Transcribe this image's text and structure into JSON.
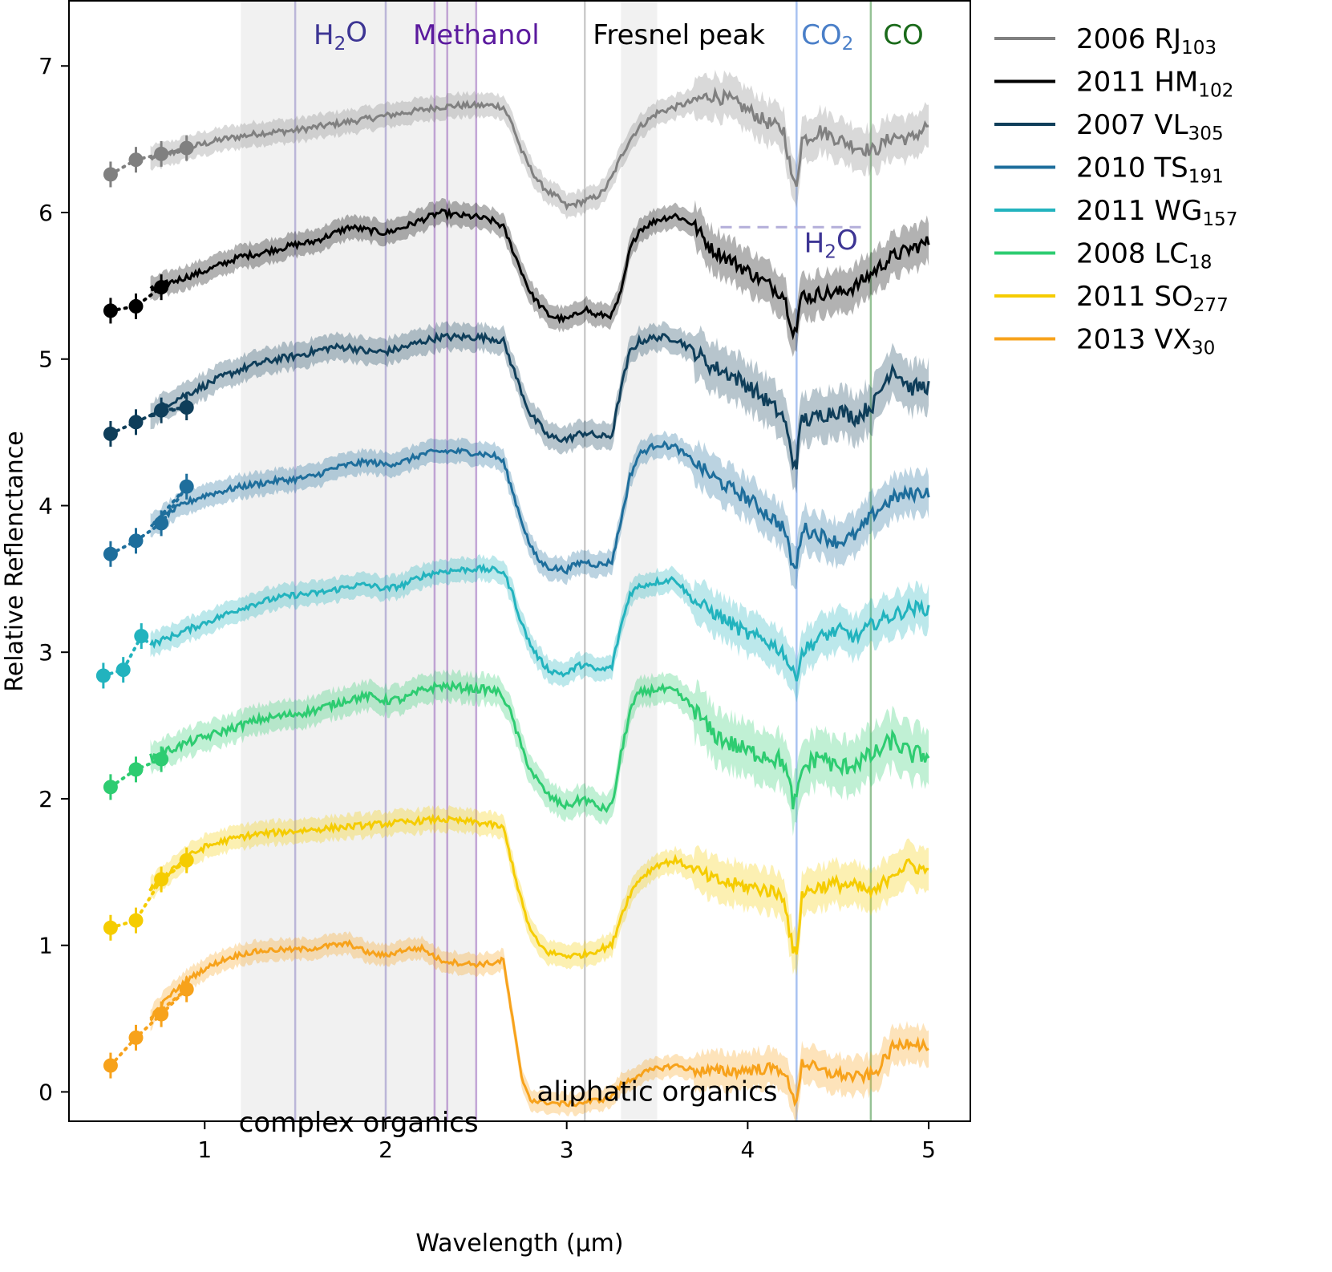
{
  "chart_data": {
    "type": "line",
    "title": "",
    "xlabel": "Wavelength (μm)",
    "ylabel": "Relative Reflenctance",
    "xlim": [
      0.25,
      5.23
    ],
    "ylim": [
      -0.2,
      7.45
    ],
    "xticks": [
      1,
      2,
      3,
      4,
      5
    ],
    "yticks": [
      0,
      1,
      2,
      3,
      4,
      5,
      6,
      7
    ],
    "grid": false,
    "legend_position": "outside-right",
    "shaded_regions": [
      {
        "x0": 1.2,
        "x1": 2.5,
        "label": "complex organics"
      },
      {
        "x0": 3.3,
        "x1": 3.5,
        "label": "aliphatic organics"
      }
    ],
    "feature_lines": [
      {
        "name": "H2O",
        "x": 1.5,
        "color": "#9890c8"
      },
      {
        "name": "H2O",
        "x": 2.0,
        "color": "#9890c8"
      },
      {
        "name": "Methanol",
        "x": 2.27,
        "color": "#a070c0"
      },
      {
        "name": "Methanol",
        "x": 2.34,
        "color": "#a070c0"
      },
      {
        "name": "Methanol",
        "x": 2.5,
        "color": "#a070c0"
      },
      {
        "name": "Fresnel peak",
        "x": 3.1,
        "color": "#aaaaaa"
      },
      {
        "name": "CO2",
        "x": 4.27,
        "color": "#6f9be8"
      },
      {
        "name": "CO",
        "x": 4.68,
        "color": "#4f9a4f"
      }
    ],
    "top_labels": [
      {
        "text": "H",
        "sub": "2",
        "tail": "O",
        "x": 1.75,
        "color": "#3d3594"
      },
      {
        "text": "Methanol",
        "sub": "",
        "tail": "",
        "x": 2.5,
        "color": "#5b1a9e"
      },
      {
        "text": "Fresnel peak",
        "sub": "",
        "tail": "",
        "x": 3.62,
        "color": "#000000"
      },
      {
        "text": "CO",
        "sub": "2",
        "tail": "",
        "x": 4.44,
        "color": "#4a7fc8"
      },
      {
        "text": "CO",
        "sub": "",
        "tail": "",
        "x": 4.86,
        "color": "#1a6a1a"
      }
    ],
    "h2o_band": {
      "x0": 3.85,
      "x1": 4.65,
      "y": 5.9,
      "label_text": "H",
      "label_sub": "2",
      "label_tail": "O",
      "label_x": 4.46,
      "label_y": 5.73,
      "color": "#b3aed9"
    },
    "region_labels": [
      {
        "text": "complex organics",
        "x": 1.85,
        "y": -0.27
      },
      {
        "text": "aliphatic organics",
        "x": 3.5,
        "y": -0.06
      }
    ],
    "wavelengths": [
      0.7,
      0.8,
      0.9,
      1.0,
      1.1,
      1.2,
      1.3,
      1.4,
      1.5,
      1.6,
      1.7,
      1.8,
      1.9,
      2.0,
      2.1,
      2.2,
      2.3,
      2.4,
      2.5,
      2.6,
      2.65,
      2.7,
      2.75,
      2.8,
      2.85,
      2.9,
      2.95,
      3.0,
      3.05,
      3.1,
      3.15,
      3.2,
      3.25,
      3.3,
      3.35,
      3.4,
      3.5,
      3.6,
      3.7,
      3.8,
      3.9,
      4.0,
      4.1,
      4.2,
      4.25,
      4.27,
      4.3,
      4.35,
      4.4,
      4.5,
      4.6,
      4.7,
      4.8,
      4.9,
      5.0
    ],
    "series": [
      {
        "name": "2006 RJ",
        "sub": "103",
        "color": "#808080",
        "noise": 0.06,
        "photometry": [
          [
            0.48,
            6.26
          ],
          [
            0.62,
            6.36
          ],
          [
            0.76,
            6.4
          ],
          [
            0.9,
            6.44
          ]
        ],
        "values": [
          6.37,
          6.4,
          6.44,
          6.47,
          6.5,
          6.52,
          6.54,
          6.55,
          6.56,
          6.58,
          6.6,
          6.62,
          6.64,
          6.66,
          6.68,
          6.7,
          6.72,
          6.73,
          6.73,
          6.73,
          6.72,
          6.6,
          6.42,
          6.3,
          6.2,
          6.14,
          6.1,
          6.04,
          6.06,
          6.08,
          6.1,
          6.14,
          6.24,
          6.38,
          6.5,
          6.58,
          6.68,
          6.72,
          6.76,
          6.8,
          6.77,
          6.7,
          6.62,
          6.56,
          6.2,
          6.2,
          6.5,
          6.52,
          6.56,
          6.5,
          6.45,
          6.42,
          6.52,
          6.5,
          6.6
        ]
      },
      {
        "name": "2011 HM",
        "sub": "102",
        "color": "#000000",
        "noise": 0.06,
        "photometry": [
          [
            0.48,
            5.33
          ],
          [
            0.62,
            5.36
          ],
          [
            0.76,
            5.49
          ]
        ],
        "values": [
          5.47,
          5.52,
          5.56,
          5.6,
          5.65,
          5.7,
          5.72,
          5.75,
          5.78,
          5.8,
          5.85,
          5.9,
          5.88,
          5.86,
          5.9,
          5.95,
          6.0,
          5.98,
          5.97,
          5.94,
          5.9,
          5.75,
          5.6,
          5.45,
          5.37,
          5.3,
          5.28,
          5.27,
          5.3,
          5.35,
          5.3,
          5.3,
          5.3,
          5.45,
          5.75,
          5.88,
          5.95,
          5.98,
          5.92,
          5.75,
          5.68,
          5.6,
          5.52,
          5.44,
          5.2,
          5.2,
          5.45,
          5.42,
          5.45,
          5.45,
          5.5,
          5.6,
          5.7,
          5.75,
          5.8
        ]
      },
      {
        "name": "2007 VL",
        "sub": "305",
        "color": "#0f3e5a",
        "noise": 0.07,
        "photometry": [
          [
            0.48,
            4.49
          ],
          [
            0.62,
            4.57
          ],
          [
            0.76,
            4.65
          ],
          [
            0.9,
            4.67
          ]
        ],
        "values": [
          4.62,
          4.7,
          4.76,
          4.82,
          4.88,
          4.93,
          4.97,
          5.0,
          5.02,
          5.05,
          5.08,
          5.08,
          5.05,
          5.05,
          5.08,
          5.12,
          5.15,
          5.15,
          5.15,
          5.14,
          5.12,
          4.95,
          4.78,
          4.62,
          4.55,
          4.47,
          4.46,
          4.45,
          4.48,
          4.5,
          4.48,
          4.47,
          4.48,
          4.8,
          5.05,
          5.12,
          5.15,
          5.14,
          5.06,
          4.95,
          4.9,
          4.82,
          4.72,
          4.6,
          4.3,
          4.3,
          4.6,
          4.58,
          4.62,
          4.65,
          4.6,
          4.7,
          4.95,
          4.8,
          4.82
        ]
      },
      {
        "name": "2010 TS",
        "sub": "191",
        "color": "#1e6e9c",
        "noise": 0.06,
        "photometry": [
          [
            0.48,
            3.67
          ],
          [
            0.62,
            3.76
          ],
          [
            0.76,
            3.88
          ],
          [
            0.9,
            4.13
          ]
        ],
        "values": [
          3.85,
          3.95,
          4.02,
          4.07,
          4.1,
          4.13,
          4.15,
          4.17,
          4.18,
          4.2,
          4.25,
          4.28,
          4.3,
          4.28,
          4.3,
          4.35,
          4.37,
          4.37,
          4.36,
          4.34,
          4.3,
          4.1,
          3.9,
          3.72,
          3.62,
          3.58,
          3.57,
          3.56,
          3.6,
          3.62,
          3.6,
          3.6,
          3.62,
          3.9,
          4.2,
          4.35,
          4.42,
          4.4,
          4.3,
          4.2,
          4.12,
          4.05,
          3.95,
          3.85,
          3.58,
          3.58,
          3.85,
          3.82,
          3.8,
          3.75,
          3.8,
          3.95,
          4.05,
          4.08,
          4.1
        ]
      },
      {
        "name": "2011 WG",
        "sub": "157",
        "color": "#22b3be",
        "noise": 0.06,
        "photometry": [
          [
            0.44,
            2.84
          ],
          [
            0.55,
            2.88
          ],
          [
            0.65,
            3.11
          ]
        ],
        "values": [
          3.05,
          3.1,
          3.15,
          3.2,
          3.25,
          3.3,
          3.34,
          3.37,
          3.39,
          3.4,
          3.42,
          3.45,
          3.46,
          3.43,
          3.46,
          3.52,
          3.55,
          3.56,
          3.57,
          3.56,
          3.55,
          3.4,
          3.2,
          3.05,
          2.95,
          2.88,
          2.86,
          2.85,
          2.9,
          2.92,
          2.88,
          2.88,
          2.9,
          3.18,
          3.4,
          3.45,
          3.48,
          3.5,
          3.35,
          3.28,
          3.2,
          3.12,
          3.08,
          3.0,
          2.85,
          2.85,
          3.0,
          3.05,
          3.1,
          3.15,
          3.1,
          3.2,
          3.25,
          3.3,
          3.3
        ]
      },
      {
        "name": "2008 LC",
        "sub": "18",
        "color": "#2ecc71",
        "noise": 0.08,
        "photometry": [
          [
            0.48,
            2.08
          ],
          [
            0.62,
            2.2
          ],
          [
            0.76,
            2.27
          ]
        ],
        "values": [
          2.28,
          2.33,
          2.38,
          2.42,
          2.46,
          2.5,
          2.54,
          2.56,
          2.58,
          2.6,
          2.64,
          2.68,
          2.7,
          2.67,
          2.68,
          2.74,
          2.77,
          2.76,
          2.75,
          2.74,
          2.7,
          2.55,
          2.35,
          2.2,
          2.1,
          2.02,
          1.98,
          1.95,
          1.98,
          2.0,
          1.96,
          1.93,
          1.95,
          2.3,
          2.6,
          2.72,
          2.75,
          2.73,
          2.62,
          2.45,
          2.38,
          2.32,
          2.3,
          2.25,
          1.98,
          1.98,
          2.2,
          2.25,
          2.3,
          2.2,
          2.25,
          2.3,
          2.4,
          2.3,
          2.3
        ]
      },
      {
        "name": "2011 SO",
        "sub": "277",
        "color": "#f5cc00",
        "noise": 0.06,
        "photometry": [
          [
            0.48,
            1.12
          ],
          [
            0.62,
            1.17
          ],
          [
            0.76,
            1.45
          ],
          [
            0.9,
            1.58
          ]
        ],
        "values": [
          1.38,
          1.5,
          1.6,
          1.67,
          1.71,
          1.74,
          1.76,
          1.77,
          1.78,
          1.79,
          1.8,
          1.81,
          1.82,
          1.83,
          1.84,
          1.85,
          1.86,
          1.85,
          1.84,
          1.82,
          1.8,
          1.55,
          1.3,
          1.1,
          1.0,
          0.95,
          0.94,
          0.93,
          0.93,
          0.94,
          0.96,
          0.98,
          1.0,
          1.2,
          1.35,
          1.45,
          1.55,
          1.58,
          1.52,
          1.45,
          1.42,
          1.4,
          1.38,
          1.34,
          0.95,
          0.95,
          1.35,
          1.38,
          1.4,
          1.42,
          1.4,
          1.35,
          1.5,
          1.55,
          1.5
        ]
      },
      {
        "name": "2013 VX",
        "sub": "30",
        "color": "#f7a21b",
        "noise": 0.05,
        "photometry": [
          [
            0.48,
            0.18
          ],
          [
            0.62,
            0.37
          ],
          [
            0.76,
            0.53
          ],
          [
            0.9,
            0.7
          ]
        ],
        "values": [
          0.5,
          0.65,
          0.76,
          0.84,
          0.9,
          0.94,
          0.96,
          0.97,
          0.97,
          0.98,
          1.0,
          1.01,
          0.95,
          0.93,
          0.97,
          0.98,
          0.9,
          0.88,
          0.87,
          0.88,
          0.9,
          0.5,
          0.1,
          -0.05,
          -0.07,
          -0.07,
          -0.08,
          -0.08,
          -0.08,
          -0.07,
          -0.06,
          -0.05,
          -0.03,
          0.05,
          0.08,
          0.12,
          0.16,
          0.18,
          0.15,
          0.14,
          0.14,
          0.15,
          0.16,
          0.15,
          -0.05,
          -0.05,
          0.2,
          0.18,
          0.14,
          0.12,
          0.1,
          0.12,
          0.3,
          0.35,
          0.3
        ]
      }
    ]
  }
}
